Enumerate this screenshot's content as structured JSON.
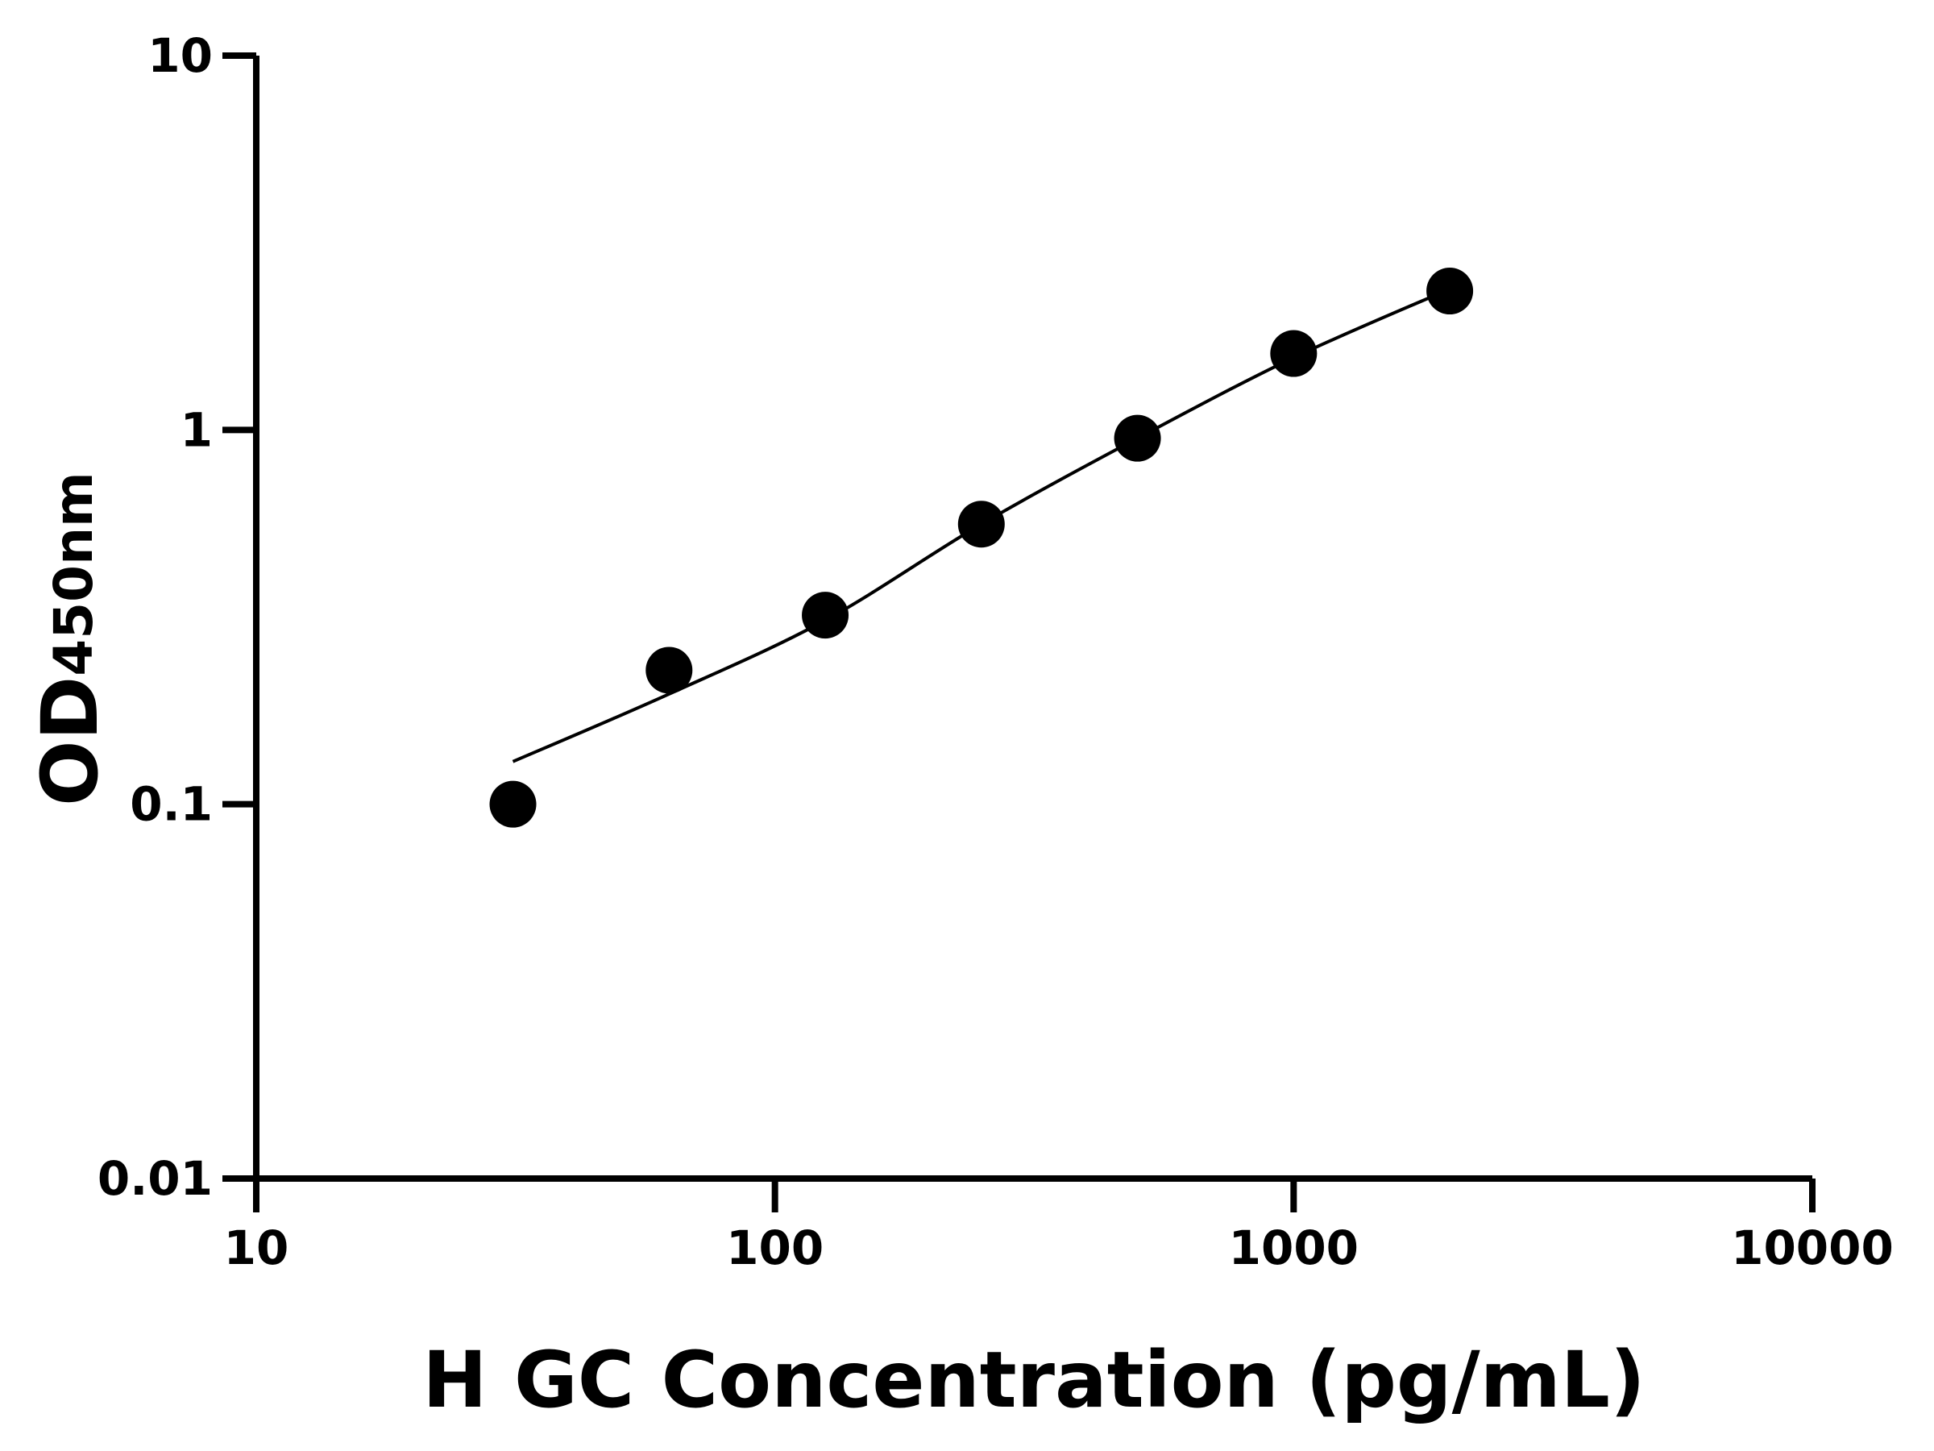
{
  "chart_data": {
    "type": "scatter",
    "title": "",
    "xlabel": "H GC Concentration (pg/mL)",
    "ylabel_main": "OD",
    "ylabel_sub": "450nm",
    "x_scale": "log",
    "y_scale": "log",
    "xlim": [
      10,
      10000
    ],
    "ylim": [
      0.01,
      10
    ],
    "x_ticks": [
      "10",
      "100",
      "1000",
      "10000"
    ],
    "y_ticks": [
      "0.01",
      "0.1",
      "1",
      "10"
    ],
    "grid": false,
    "points": [
      {
        "x": 31.25,
        "y": 0.1
      },
      {
        "x": 62.5,
        "y": 0.228
      },
      {
        "x": 125,
        "y": 0.32
      },
      {
        "x": 250,
        "y": 0.56
      },
      {
        "x": 500,
        "y": 0.95
      },
      {
        "x": 1000,
        "y": 1.6
      },
      {
        "x": 2000,
        "y": 2.35
      }
    ],
    "fit_curve": [
      {
        "x": 31.25,
        "y": 0.13
      },
      {
        "x": 62.5,
        "y": 0.197
      },
      {
        "x": 125,
        "y": 0.31
      },
      {
        "x": 250,
        "y": 0.56
      },
      {
        "x": 500,
        "y": 0.95
      },
      {
        "x": 1000,
        "y": 1.56
      },
      {
        "x": 2000,
        "y": 2.38
      }
    ],
    "color": "#000000"
  }
}
